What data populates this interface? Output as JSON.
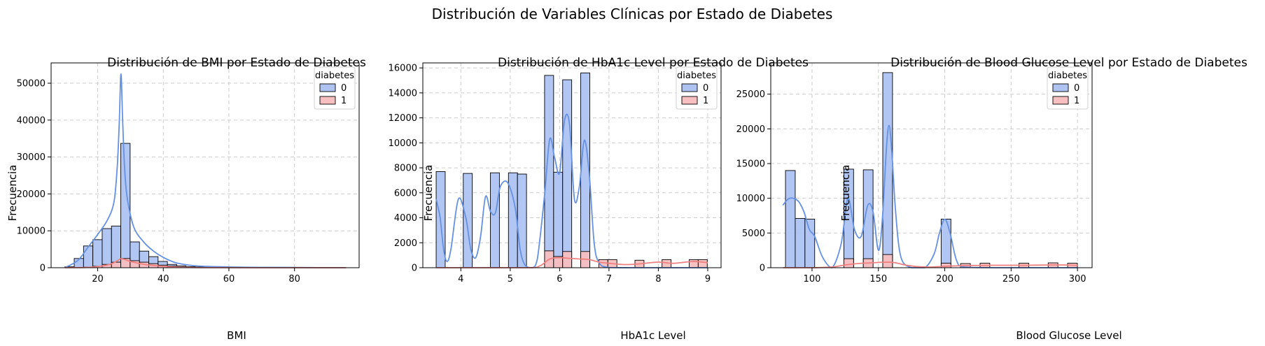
{
  "suptitle": "Distribución de Variables Clínicas por Estado de Diabetes",
  "colors": {
    "class0_fill": "#aec3f2",
    "class0_line": "#6491e3",
    "class1_fill": "#f7bfbf",
    "class1_line": "#f08080",
    "grid": "#cccccc",
    "bar_edge": "#000000"
  },
  "chart_data": [
    {
      "type": "histogram",
      "title": "Distribución de BMI por Estado de Diabetes",
      "xlabel": "BMI",
      "ylabel": "Frecuencia",
      "xlim": [
        5.8,
        99.7
      ],
      "ylim": [
        0,
        55500
      ],
      "xticks": [
        20,
        40,
        60,
        80
      ],
      "yticks": [
        0,
        10000,
        20000,
        30000,
        40000,
        50000
      ],
      "grid": true,
      "legend": {
        "title": "diabetes",
        "entries": [
          "0",
          "1"
        ],
        "placement": "top-right"
      },
      "bin_start": 10.01,
      "bin_width": 2.84,
      "series": [
        {
          "name": "0",
          "values": [
            250,
            2500,
            5900,
            7600,
            10600,
            11300,
            33700,
            7000,
            4500,
            3000,
            1700,
            900,
            500,
            300,
            200,
            120,
            80,
            50,
            30,
            20,
            15,
            10,
            8,
            6,
            5,
            4,
            3,
            2,
            2,
            1
          ]
        },
        {
          "name": "1",
          "values": [
            0,
            30,
            150,
            400,
            900,
            1500,
            2500,
            1900,
            1500,
            1100,
            700,
            450,
            250,
            120,
            60,
            30,
            15,
            8,
            4,
            2,
            1,
            1,
            0,
            0,
            0,
            0,
            0,
            0,
            0,
            0
          ]
        }
      ],
      "kde": [
        {
          "name": "0",
          "x": [
            10,
            14,
            17,
            20,
            23,
            25,
            26,
            26.6,
            27.1,
            27.6,
            28.2,
            29,
            31,
            34,
            37,
            40,
            44,
            50,
            60,
            70,
            80,
            95.7
          ],
          "y": [
            0,
            2000,
            5500,
            9000,
            13000,
            18000,
            28000,
            40000,
            52500,
            40000,
            27000,
            19000,
            11000,
            7000,
            4500,
            2800,
            1300,
            500,
            200,
            100,
            50,
            0
          ]
        },
        {
          "name": "1",
          "x": [
            10,
            16,
            20,
            24,
            26,
            27,
            28,
            30,
            33,
            37,
            42,
            48,
            55,
            70,
            95.7
          ],
          "y": [
            0,
            60,
            300,
            1000,
            1900,
            2400,
            2300,
            1700,
            1100,
            600,
            250,
            80,
            20,
            0,
            0
          ]
        }
      ]
    },
    {
      "type": "histogram",
      "title": "Distribución de HbA1c Level por Estado de Diabetes",
      "xlabel": "HbA1c Level",
      "ylabel": "Frecuencia",
      "xlim": [
        3.23,
        9.27
      ],
      "ylim": [
        0,
        16400
      ],
      "xticks": [
        4,
        5,
        6,
        7,
        8,
        9
      ],
      "yticks": [
        0,
        2000,
        4000,
        6000,
        8000,
        10000,
        12000,
        14000,
        16000
      ],
      "grid": true,
      "legend": {
        "title": "diabetes",
        "entries": [
          "0",
          "1"
        ],
        "placement": "top-right"
      },
      "bin_start": 3.5,
      "bin_width": 0.183,
      "series": [
        {
          "name": "0",
          "values": [
            7700,
            0,
            0,
            7550,
            0,
            0,
            7600,
            0,
            7600,
            7500,
            0,
            0,
            15400,
            7650,
            15050,
            0,
            15600,
            0,
            0,
            0,
            0,
            0,
            0,
            0,
            0,
            0,
            0,
            0,
            0,
            0
          ]
        },
        {
          "name": "1",
          "values": [
            0,
            0,
            0,
            0,
            0,
            0,
            0,
            0,
            0,
            0,
            0,
            0,
            1350,
            900,
            1300,
            0,
            1300,
            0,
            650,
            650,
            0,
            0,
            600,
            0,
            0,
            650,
            0,
            0,
            650,
            650
          ]
        }
      ],
      "kde": [
        {
          "name": "0",
          "x": [
            3.5,
            3.58,
            3.65,
            3.72,
            3.8,
            3.95,
            4.1,
            4.2,
            4.3,
            4.4,
            4.5,
            4.6,
            4.7,
            4.8,
            4.95,
            5.1,
            5.2,
            5.3,
            5.45,
            5.55,
            5.7,
            5.8,
            5.9,
            6.0,
            6.1,
            6.2,
            6.3,
            6.4,
            6.5,
            6.6,
            6.7,
            6.8,
            7.0,
            7.5,
            9.0
          ],
          "y": [
            5500,
            4000,
            1500,
            500,
            1500,
            5500,
            4000,
            1500,
            800,
            2500,
            5700,
            4500,
            4400,
            6500,
            6800,
            4800,
            1500,
            200,
            0,
            700,
            6000,
            10300,
            8800,
            7600,
            11800,
            11500,
            5500,
            6500,
            10200,
            7500,
            2000,
            400,
            20,
            0,
            0
          ]
        },
        {
          "name": "1",
          "x": [
            3.5,
            5.3,
            5.6,
            5.8,
            6.0,
            6.2,
            6.4,
            6.6,
            6.8,
            7.0,
            7.3,
            7.6,
            8.0,
            8.3,
            8.7,
            9.0
          ],
          "y": [
            0,
            0,
            150,
            700,
            800,
            750,
            700,
            650,
            450,
            350,
            250,
            300,
            450,
            350,
            500,
            400
          ]
        }
      ]
    },
    {
      "type": "histogram",
      "title": "Distribución de Blood Glucose Level por Estado de Diabetes",
      "xlabel": "Blood Glucose Level",
      "ylabel": "Frecuencia",
      "xlim": [
        68.9,
        311
      ],
      "ylim": [
        0,
        29500
      ],
      "xticks": [
        100,
        150,
        200,
        250,
        300
      ],
      "yticks": [
        0,
        5000,
        10000,
        15000,
        20000,
        25000
      ],
      "grid": true,
      "legend": {
        "title": "diabetes",
        "entries": [
          "0",
          "1"
        ],
        "placement": "top-right"
      },
      "bin_start": 80,
      "bin_width": 7.33,
      "series": [
        {
          "name": "0",
          "values": [
            14000,
            7100,
            7000,
            0,
            0,
            0,
            14200,
            0,
            14100,
            0,
            28100,
            0,
            0,
            0,
            0,
            0,
            7000,
            0,
            0,
            0,
            0,
            0,
            0,
            0,
            0,
            0,
            0,
            0,
            0,
            0
          ]
        },
        {
          "name": "1",
          "values": [
            0,
            0,
            0,
            0,
            0,
            0,
            1300,
            0,
            1300,
            0,
            1900,
            0,
            0,
            0,
            0,
            0,
            650,
            0,
            600,
            0,
            650,
            0,
            0,
            0,
            650,
            0,
            0,
            700,
            0,
            650
          ]
        }
      ],
      "kde": [
        {
          "name": "0",
          "x": [
            78,
            82,
            86,
            90,
            94,
            98,
            102,
            108,
            115,
            122,
            127,
            132,
            137,
            142,
            146,
            150,
            153,
            156,
            158,
            160,
            163,
            167,
            175,
            185,
            192,
            196,
            200,
            204,
            209,
            215,
            240,
            300
          ],
          "y": [
            9000,
            9900,
            10000,
            9500,
            8000,
            5500,
            4500,
            1500,
            0,
            3500,
            10000,
            5500,
            4500,
            9000,
            8000,
            2500,
            7000,
            17000,
            20500,
            17000,
            8000,
            1500,
            0,
            0,
            2000,
            5000,
            7000,
            5000,
            1000,
            100,
            0,
            0
          ]
        },
        {
          "name": "1",
          "x": [
            78,
            100,
            115,
            125,
            135,
            145,
            155,
            162,
            170,
            180,
            190,
            200,
            215,
            235,
            260,
            285,
            300
          ],
          "y": [
            0,
            0,
            100,
            400,
            600,
            700,
            800,
            750,
            400,
            150,
            100,
            200,
            300,
            350,
            350,
            400,
            350
          ]
        }
      ]
    }
  ]
}
